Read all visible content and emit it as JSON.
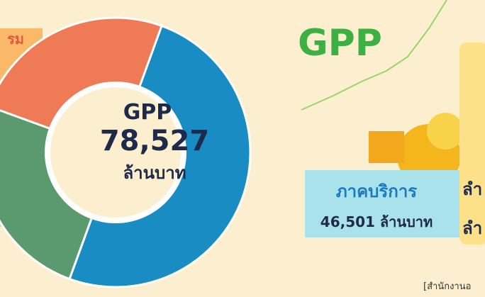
{
  "left_labels": [
    "รม",
    "ม"
  ],
  "center": {
    "title": "GPP",
    "total": "78,527",
    "unit": "ล้านบาท"
  },
  "heading": "GPP",
  "service": {
    "name": "ภาคบริการ",
    "amount": "46,501 ล้านบาท"
  },
  "side_lines": [
    "ลำ",
    "ลำ"
  ],
  "source": "[สำนักงานอ"
}
